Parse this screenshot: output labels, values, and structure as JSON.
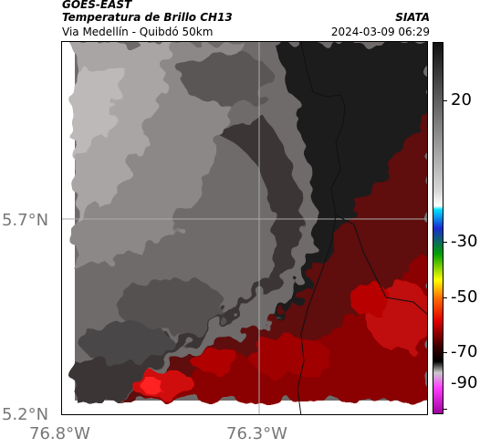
{
  "header": {
    "source": "GOES-EAST",
    "product": "Temperatura de Brillo CH13",
    "organization": "SIATA",
    "subtitle": "Via Medellín - Quibdó 50km",
    "datetime": "2024-03-09 06:29"
  },
  "map": {
    "lat_labels": [
      "5.7°N",
      "5.2°N"
    ],
    "lon_labels": [
      "76.8°W",
      "76.3°W"
    ]
  },
  "colorbar": {
    "ticks": [
      "20",
      "-30",
      "-50",
      "-70",
      "-90"
    ]
  },
  "colors": {
    "warm_gray": "#8c8888",
    "dark_gray": "#3a3a3a",
    "deep_red": "#8b0000",
    "bright_red": "#ff1010",
    "black": "#111111"
  }
}
